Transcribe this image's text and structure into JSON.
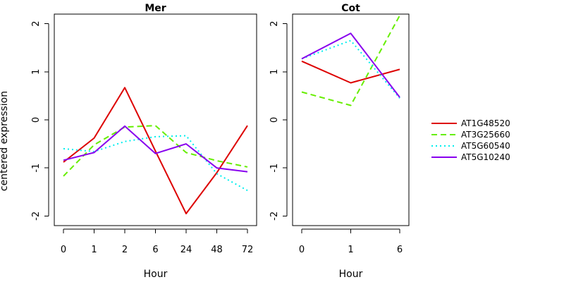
{
  "chart_data": {
    "type": "line",
    "ylabel": "centered expression",
    "legend": {
      "placement": "right",
      "entries": [
        "AT1G48520",
        "AT3G25660",
        "AT5G60540",
        "AT5G10240"
      ]
    },
    "series_styles": [
      {
        "name": "AT1G48520",
        "color": "#dd0000",
        "dash": "solid"
      },
      {
        "name": "AT3G25660",
        "color": "#66ee00",
        "dash": "dashed"
      },
      {
        "name": "AT5G60540",
        "color": "#00eeee",
        "dash": "dotted"
      },
      {
        "name": "AT5G10240",
        "color": "#8800ee",
        "dash": "solid"
      }
    ],
    "panels": [
      {
        "title": "Mer",
        "xlabel": "Hour",
        "categories": [
          "0",
          "1",
          "2",
          "6",
          "24",
          "48",
          "72"
        ],
        "ylim": [
          -2.2,
          2.2
        ],
        "yticks": [
          -2,
          -1,
          0,
          1,
          2
        ],
        "series": [
          {
            "name": "AT1G48520",
            "values": [
              -0.88,
              -0.38,
              0.67,
              -0.65,
              -1.95,
              -1.1,
              -0.12
            ]
          },
          {
            "name": "AT3G25660",
            "values": [
              -1.17,
              -0.52,
              -0.15,
              -0.12,
              -0.68,
              -0.85,
              -0.98
            ]
          },
          {
            "name": "AT5G60540",
            "values": [
              -0.6,
              -0.66,
              -0.45,
              -0.35,
              -0.33,
              -1.12,
              -1.47
            ]
          },
          {
            "name": "AT5G10240",
            "values": [
              -0.84,
              -0.68,
              -0.13,
              -0.7,
              -0.5,
              -1.0,
              -1.08
            ]
          }
        ]
      },
      {
        "title": "Cot",
        "xlabel": "Hour",
        "categories": [
          "0",
          "1",
          "6"
        ],
        "ylim": [
          -2.2,
          2.2
        ],
        "yticks": [
          -2,
          -1,
          0,
          1,
          2
        ],
        "series": [
          {
            "name": "AT1G48520",
            "values": [
              1.22,
              0.77,
              1.05
            ]
          },
          {
            "name": "AT3G25660",
            "values": [
              0.58,
              0.3,
              2.17
            ]
          },
          {
            "name": "AT5G60540",
            "values": [
              1.27,
              1.65,
              0.45
            ]
          },
          {
            "name": "AT5G10240",
            "values": [
              1.27,
              1.8,
              0.47
            ]
          }
        ]
      }
    ]
  }
}
